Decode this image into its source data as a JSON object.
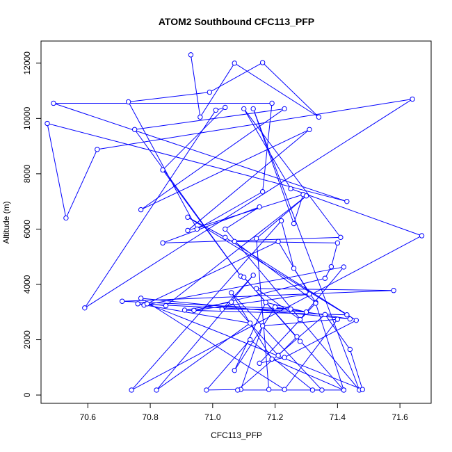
{
  "chart_data": {
    "type": "line",
    "title": "ATOM2 Southbound CFC113_PFP",
    "xlabel": "CFC113_PFP",
    "ylabel": "Altitude (m)",
    "xlim": [
      70.45,
      71.7
    ],
    "ylim": [
      -300,
      12800
    ],
    "x_ticks": [
      "70.6",
      "70.8",
      "71.0",
      "71.2",
      "71.4",
      "71.6"
    ],
    "y_ticks": [
      "0",
      "2000",
      "4000",
      "6000",
      "8000",
      "10000",
      "12000"
    ],
    "grid": false,
    "legend": "none",
    "series_color": "#0000ff",
    "marker": "open-circle",
    "x": [
      70.93,
      70.96,
      71.07,
      71.34,
      71.16,
      70.99,
      70.73,
      70.95,
      71.16,
      71.19,
      70.49,
      71.43,
      70.47,
      70.53,
      70.63,
      71.64,
      70.59,
      71.01,
      71.04,
      70.84,
      71.09,
      70.75,
      71.23,
      70.77,
      71.31,
      70.92,
      71.29,
      71.26,
      71.13,
      71.47,
      71.04,
      71.15,
      70.84,
      71.41,
      71.1,
      71.25,
      71.67,
      70.74,
      71.22,
      71.26,
      71.33,
      71.07,
      71.4,
      71.38,
      71.36,
      70.94,
      71.31,
      71.21,
      70.78,
      71.42,
      71.28,
      71.14,
      71.58,
      70.71,
      71.25,
      71.03,
      71.13,
      70.82,
      71.12,
      70.76,
      71.3,
      71.17,
      71.07,
      71.2,
      71.44,
      70.77,
      71.23,
      71.4,
      71.16,
      71.09,
      70.98,
      71.12,
      71.32,
      71.35,
      71.06,
      71.19,
      71.42,
      71.33,
      71.15,
      71.23,
      71.46,
      71.04,
      70.92,
      71.43,
      70.91,
      71.06,
      71.21,
      71.27,
      71.28,
      71.1,
      71.42,
      71.08,
      71.36,
      71.44,
      71.48,
      70.79,
      70.85,
      71.3,
      71.14,
      71.18
    ],
    "y": [
      12300,
      10050,
      12000,
      10050,
      12020,
      10950,
      10600,
      6000,
      7350,
      10550,
      10550,
      7000,
      9820,
      6400,
      8880,
      10700,
      3150,
      10300,
      10400,
      8140,
      4300,
      9600,
      10350,
      6700,
      9600,
      5950,
      7250,
      6200,
      10350,
      180,
      6000,
      6800,
      5500,
      5700,
      10350,
      7460,
      5760,
      180,
      6300,
      4580,
      3350,
      5550,
      5500,
      4640,
      4220,
      3060,
      3650,
      5550,
      3250,
      4630,
      2730,
      3850,
      3780,
      3390,
      3110,
      3100,
      4330,
      180,
      2600,
      3300,
      3000,
      3350,
      890,
      3180,
      2750,
      3500,
      200,
      2740,
      2500,
      200,
      180,
      2000,
      180,
      180,
      3700,
      1300,
      180,
      3320,
      1150,
      1360,
      2700,
      5700,
      6430,
      2900,
      3070,
      3360,
      1430,
      2110,
      1940,
      4260,
      180,
      180,
      2910,
      1650,
      200,
      3300,
      3230,
      7200,
      5660,
      200
    ]
  }
}
